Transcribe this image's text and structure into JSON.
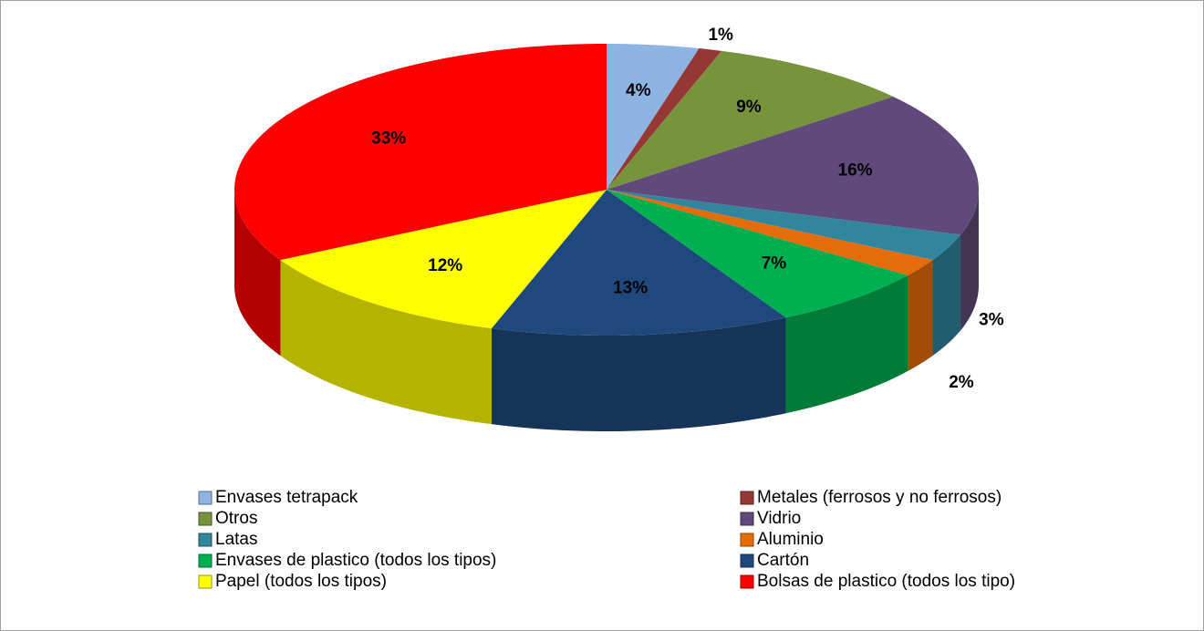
{
  "chart_data": {
    "type": "pie",
    "categories": [
      "Envases tetrapack",
      "Metales (ferrosos y no ferrosos)",
      "Otros",
      "Vidrio",
      "Latas",
      "Aluminio",
      "Envases de plastico (todos los tipos)",
      "Cartón",
      "Papel (todos los tipos)",
      "Bolsas de plastico (todos los tipo)"
    ],
    "values": [
      4,
      1,
      9,
      16,
      3,
      2,
      7,
      13,
      12,
      33
    ],
    "value_labels": [
      "4%",
      "1%",
      "9%",
      "16%",
      "3%",
      "2%",
      "7%",
      "13%",
      "12%",
      "33%"
    ],
    "colors": [
      "#8eb4e3",
      "#953735",
      "#77933c",
      "#604a7b",
      "#31859c",
      "#e46c0a",
      "#00b050",
      "#1f497d",
      "#ffff00",
      "#ff0000"
    ],
    "legend": "bottom"
  }
}
